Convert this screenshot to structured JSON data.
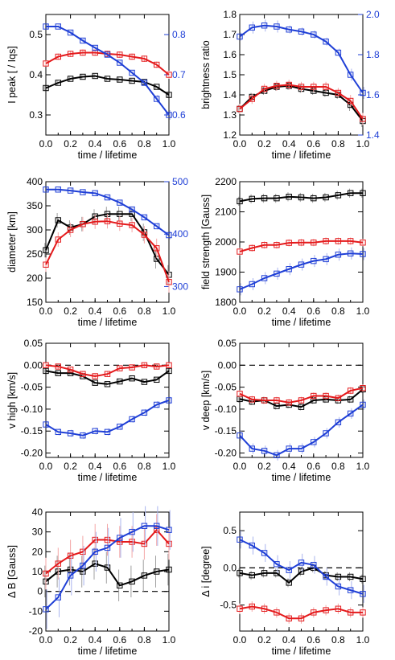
{
  "colors": {
    "black": "#000000",
    "red": "#e41a1c",
    "blue": "#1f3fd6",
    "red_err": "#f4a6a6",
    "blue_err": "#a9b4ee",
    "black_err": "#a0a0a0"
  },
  "chart_data": [
    {
      "type": "line",
      "title": "",
      "xlabel": "time / lifetime",
      "ylabel": "I peak [ / Iqs]",
      "y2label": "",
      "xlim": [
        0,
        1
      ],
      "ylim": [
        0.25,
        0.55
      ],
      "y2lim": [
        0.55,
        0.85
      ],
      "xticks": [
        "0.0",
        "0.2",
        "0.4",
        "0.6",
        "0.8",
        "1.0"
      ],
      "yticks": [
        "0.3",
        "0.4",
        "0.5"
      ],
      "y2ticks": [
        "0.6",
        "0.7",
        "0.8"
      ],
      "x": [
        0,
        0.1,
        0.2,
        0.3,
        0.4,
        0.5,
        0.6,
        0.7,
        0.8,
        0.9,
        1.0
      ],
      "series": [
        {
          "color": "black",
          "axis": "left",
          "values": [
            0.367,
            0.38,
            0.39,
            0.395,
            0.397,
            0.39,
            0.388,
            0.385,
            0.382,
            0.37,
            0.35
          ],
          "err": [
            0.005,
            0.005,
            0.005,
            0.005,
            0.005,
            0.005,
            0.005,
            0.005,
            0.005,
            0.005,
            0.008
          ]
        },
        {
          "color": "red",
          "axis": "left",
          "values": [
            0.428,
            0.445,
            0.452,
            0.455,
            0.455,
            0.452,
            0.45,
            0.445,
            0.44,
            0.425,
            0.4
          ],
          "err": [
            0.008,
            0.008,
            0.008,
            0.008,
            0.008,
            0.008,
            0.008,
            0.008,
            0.008,
            0.008,
            0.01
          ]
        },
        {
          "color": "blue",
          "axis": "right",
          "values": [
            0.82,
            0.82,
            0.805,
            0.785,
            0.767,
            0.75,
            0.73,
            0.705,
            0.68,
            0.64,
            0.6
          ],
          "err": [
            0.007,
            0.007,
            0.007,
            0.007,
            0.007,
            0.007,
            0.007,
            0.007,
            0.008,
            0.01,
            0.012
          ]
        }
      ]
    },
    {
      "type": "line",
      "title": "",
      "xlabel": "time / lifetime",
      "ylabel": "brightness ratio",
      "y2label": "",
      "xlim": [
        0,
        1
      ],
      "ylim": [
        1.2,
        1.8
      ],
      "y2lim": [
        1.4,
        2.0
      ],
      "xticks": [
        "0.0",
        "0.2",
        "0.4",
        "0.6",
        "0.8",
        "1.0"
      ],
      "yticks": [
        "1.2",
        "1.3",
        "1.4",
        "1.5",
        "1.6",
        "1.7",
        "1.8"
      ],
      "y2ticks": [
        "1.4",
        "1.6",
        "1.8",
        "2.0"
      ],
      "x": [
        0,
        0.1,
        0.2,
        0.3,
        0.4,
        0.5,
        0.6,
        0.7,
        0.8,
        0.9,
        1.0
      ],
      "series": [
        {
          "color": "black",
          "axis": "left",
          "values": [
            1.33,
            1.39,
            1.42,
            1.44,
            1.445,
            1.43,
            1.42,
            1.41,
            1.4,
            1.35,
            1.27
          ],
          "err": [
            0.02,
            0.02,
            0.02,
            0.02,
            0.02,
            0.02,
            0.02,
            0.02,
            0.02,
            0.03,
            0.03
          ]
        },
        {
          "color": "red",
          "axis": "left",
          "values": [
            1.33,
            1.38,
            1.43,
            1.445,
            1.45,
            1.44,
            1.44,
            1.44,
            1.41,
            1.37,
            1.28
          ],
          "err": [
            0.025,
            0.025,
            0.025,
            0.025,
            0.025,
            0.025,
            0.025,
            0.025,
            0.025,
            0.03,
            0.03
          ]
        },
        {
          "color": "blue",
          "axis": "right",
          "values": [
            1.89,
            1.935,
            1.945,
            1.94,
            1.925,
            1.915,
            1.9,
            1.865,
            1.81,
            1.7,
            1.61
          ],
          "err": [
            0.02,
            0.03,
            0.03,
            0.03,
            0.02,
            0.02,
            0.02,
            0.02,
            0.02,
            0.03,
            0.03
          ]
        }
      ]
    },
    {
      "type": "line",
      "title": "",
      "xlabel": "time / lifetime",
      "ylabel": "diameter [km]",
      "y2label": "",
      "xlim": [
        0,
        1
      ],
      "ylim": [
        150,
        400
      ],
      "y2lim": [
        270,
        500
      ],
      "xticks": [
        "0.0",
        "0.2",
        "0.4",
        "0.6",
        "0.8",
        "1.0"
      ],
      "yticks": [
        "150",
        "200",
        "250",
        "300",
        "350",
        "400"
      ],
      "y2ticks": [
        "300",
        "400",
        "500"
      ],
      "x": [
        0,
        0.1,
        0.2,
        0.3,
        0.4,
        0.5,
        0.6,
        0.7,
        0.8,
        0.9,
        1.0
      ],
      "series": [
        {
          "color": "black",
          "axis": "left",
          "values": [
            258,
            320,
            305,
            312,
            328,
            333,
            333,
            333,
            295,
            240,
            207
          ],
          "err": [
            15,
            15,
            15,
            15,
            15,
            15,
            15,
            15,
            18,
            20,
            20
          ]
        },
        {
          "color": "red",
          "axis": "left",
          "values": [
            228,
            280,
            300,
            312,
            317,
            318,
            313,
            310,
            290,
            262,
            192
          ],
          "err": [
            15,
            15,
            15,
            15,
            15,
            15,
            15,
            15,
            18,
            20,
            22
          ]
        },
        {
          "color": "blue",
          "axis": "right",
          "values": [
            485,
            485,
            483,
            480,
            478,
            470,
            460,
            447,
            432,
            415,
            398
          ],
          "err": [
            5,
            5,
            5,
            5,
            5,
            5,
            5,
            5,
            6,
            6,
            8
          ]
        }
      ]
    },
    {
      "type": "line",
      "title": "",
      "xlabel": "time / lifetime",
      "ylabel": "field strength [Gauss]",
      "xlim": [
        0,
        1
      ],
      "ylim": [
        1800,
        2200
      ],
      "xticks": [
        "0.0",
        "0.2",
        "0.4",
        "0.6",
        "0.8",
        "1.0"
      ],
      "yticks": [
        "1800",
        "1900",
        "2000",
        "2100",
        "2200"
      ],
      "x": [
        0,
        0.1,
        0.2,
        0.3,
        0.4,
        0.5,
        0.6,
        0.7,
        0.8,
        0.9,
        1.0
      ],
      "series": [
        {
          "color": "black",
          "axis": "left",
          "values": [
            2135,
            2143,
            2145,
            2145,
            2150,
            2148,
            2145,
            2148,
            2155,
            2162,
            2162
          ],
          "err": [
            15,
            15,
            15,
            15,
            15,
            15,
            15,
            15,
            15,
            15,
            15
          ]
        },
        {
          "color": "red",
          "axis": "left",
          "values": [
            1968,
            1980,
            1990,
            1990,
            1997,
            1998,
            1998,
            2003,
            2003,
            2003,
            1998
          ],
          "err": [
            12,
            12,
            12,
            12,
            12,
            12,
            12,
            12,
            12,
            12,
            12
          ]
        },
        {
          "color": "blue",
          "axis": "left",
          "values": [
            1843,
            1860,
            1880,
            1895,
            1910,
            1925,
            1937,
            1943,
            1958,
            1962,
            1960
          ],
          "err": [
            20,
            20,
            20,
            20,
            20,
            20,
            20,
            20,
            20,
            20,
            20
          ]
        }
      ]
    },
    {
      "type": "line",
      "title": "",
      "xlabel": "time / lifetime",
      "ylabel": "v high [km/s]",
      "xlim": [
        0,
        1
      ],
      "ylim": [
        -0.21,
        0.05
      ],
      "hline": 0,
      "xticks": [
        "0.0",
        "0.2",
        "0.4",
        "0.6",
        "0.8",
        "1.0"
      ],
      "yticks": [
        "-0.20",
        "-0.15",
        "-0.10",
        "-0.05",
        "0.00",
        "0.05"
      ],
      "x": [
        0,
        0.1,
        0.2,
        0.3,
        0.4,
        0.5,
        0.6,
        0.7,
        0.8,
        0.9,
        1.0
      ],
      "series": [
        {
          "color": "black",
          "axis": "left",
          "values": [
            -0.013,
            -0.018,
            -0.018,
            -0.025,
            -0.04,
            -0.043,
            -0.037,
            -0.03,
            -0.038,
            -0.033,
            -0.013
          ],
          "err": [
            0.004,
            0.004,
            0.004,
            0.004,
            0.004,
            0.004,
            0.004,
            0.004,
            0.004,
            0.004,
            0.004
          ]
        },
        {
          "color": "red",
          "axis": "left",
          "values": [
            0.0,
            -0.003,
            -0.01,
            -0.02,
            -0.025,
            -0.02,
            -0.007,
            -0.005,
            0.0,
            -0.003,
            0.0
          ],
          "err": [
            0.006,
            0.006,
            0.006,
            0.006,
            0.006,
            0.006,
            0.006,
            0.006,
            0.006,
            0.006,
            0.006
          ]
        },
        {
          "color": "blue",
          "axis": "left",
          "values": [
            -0.135,
            -0.152,
            -0.155,
            -0.16,
            -0.15,
            -0.152,
            -0.14,
            -0.123,
            -0.108,
            -0.09,
            -0.08
          ],
          "err": [
            0.008,
            0.008,
            0.008,
            0.008,
            0.008,
            0.008,
            0.008,
            0.008,
            0.008,
            0.008,
            0.008
          ]
        }
      ]
    },
    {
      "type": "line",
      "title": "",
      "xlabel": "time / lifetime",
      "ylabel": "v deep [km/s]",
      "xlim": [
        0,
        1
      ],
      "ylim": [
        -0.21,
        0.05
      ],
      "hline": 0,
      "xticks": [
        "0.0",
        "0.2",
        "0.4",
        "0.6",
        "0.8",
        "1.0"
      ],
      "yticks": [
        "-0.20",
        "-0.15",
        "-0.10",
        "-0.05",
        "0.00",
        "0.05"
      ],
      "x": [
        0,
        0.1,
        0.2,
        0.3,
        0.4,
        0.5,
        0.6,
        0.7,
        0.8,
        0.9,
        1.0
      ],
      "series": [
        {
          "color": "black",
          "axis": "left",
          "values": [
            -0.077,
            -0.083,
            -0.08,
            -0.093,
            -0.09,
            -0.095,
            -0.08,
            -0.078,
            -0.08,
            -0.078,
            -0.055
          ],
          "err": [
            0.008,
            0.008,
            0.008,
            0.008,
            0.008,
            0.008,
            0.008,
            0.008,
            0.008,
            0.008,
            0.008
          ]
        },
        {
          "color": "red",
          "axis": "left",
          "values": [
            -0.065,
            -0.078,
            -0.08,
            -0.08,
            -0.085,
            -0.08,
            -0.07,
            -0.07,
            -0.075,
            -0.058,
            -0.052
          ],
          "err": [
            0.008,
            0.008,
            0.008,
            0.008,
            0.008,
            0.008,
            0.008,
            0.008,
            0.008,
            0.008,
            0.008
          ]
        },
        {
          "color": "blue",
          "axis": "left",
          "values": [
            -0.16,
            -0.19,
            -0.195,
            -0.205,
            -0.19,
            -0.19,
            -0.175,
            -0.155,
            -0.13,
            -0.11,
            -0.09
          ],
          "err": [
            0.012,
            0.012,
            0.012,
            0.012,
            0.012,
            0.012,
            0.012,
            0.012,
            0.012,
            0.012,
            0.012
          ]
        }
      ]
    },
    {
      "type": "line",
      "title": "",
      "xlabel": "time / lifetime",
      "ylabel": "Δ B [Gauss]",
      "xlim": [
        0,
        1
      ],
      "ylim": [
        -20,
        40
      ],
      "hline": 0,
      "xticks": [
        "0.0",
        "0.2",
        "0.4",
        "0.6",
        "0.8",
        "1.0"
      ],
      "yticks": [
        "-20",
        "-10",
        "0",
        "10",
        "20",
        "30",
        "40"
      ],
      "x": [
        0,
        0.1,
        0.2,
        0.3,
        0.4,
        0.5,
        0.6,
        0.7,
        0.8,
        0.9,
        1.0
      ],
      "series": [
        {
          "color": "black",
          "axis": "left",
          "values": [
            5,
            10,
            11,
            10,
            14,
            12,
            3,
            5,
            8,
            10,
            11
          ],
          "err": [
            8,
            8,
            8,
            8,
            8,
            8,
            8,
            8,
            8,
            8,
            8
          ]
        },
        {
          "color": "red",
          "axis": "left",
          "values": [
            9,
            14,
            18,
            20,
            26,
            26,
            25,
            25,
            24,
            31,
            24
          ],
          "err": [
            8,
            8,
            8,
            8,
            8,
            8,
            8,
            8,
            8,
            8,
            8
          ]
        },
        {
          "color": "blue",
          "axis": "left",
          "values": [
            -9,
            -3,
            8,
            13,
            20,
            22,
            27,
            30,
            33,
            33,
            31
          ],
          "err": [
            10,
            10,
            10,
            10,
            10,
            10,
            10,
            10,
            10,
            10,
            10
          ]
        }
      ]
    },
    {
      "type": "line",
      "title": "",
      "xlabel": "time / lifetime",
      "ylabel": "Δ i [degree]",
      "xlim": [
        0,
        1
      ],
      "ylim": [
        -0.85,
        0.75
      ],
      "hline": 0,
      "xticks": [
        "0.0",
        "0.2",
        "0.4",
        "0.6",
        "0.8",
        "1.0"
      ],
      "yticks": [
        "-0.5",
        "0.0",
        "0.5"
      ],
      "x": [
        0,
        0.1,
        0.2,
        0.3,
        0.4,
        0.5,
        0.6,
        0.7,
        0.8,
        0.9,
        1.0
      ],
      "series": [
        {
          "color": "black",
          "axis": "left",
          "values": [
            -0.07,
            -0.1,
            -0.07,
            -0.07,
            -0.2,
            -0.05,
            0.0,
            -0.1,
            -0.12,
            -0.12,
            -0.15
          ],
          "err": [
            0.06,
            0.06,
            0.06,
            0.06,
            0.06,
            0.06,
            0.06,
            0.06,
            0.06,
            0.06,
            0.06
          ]
        },
        {
          "color": "red",
          "axis": "left",
          "values": [
            -0.55,
            -0.52,
            -0.55,
            -0.6,
            -0.68,
            -0.68,
            -0.6,
            -0.57,
            -0.55,
            -0.6,
            -0.6
          ],
          "err": [
            0.07,
            0.07,
            0.07,
            0.07,
            0.07,
            0.07,
            0.07,
            0.07,
            0.07,
            0.07,
            0.07
          ]
        },
        {
          "color": "blue",
          "axis": "left",
          "values": [
            0.38,
            0.3,
            0.2,
            0.05,
            -0.03,
            0.07,
            0.04,
            -0.12,
            -0.25,
            -0.3,
            -0.35
          ],
          "err": [
            0.12,
            0.12,
            0.12,
            0.12,
            0.12,
            0.12,
            0.12,
            0.12,
            0.12,
            0.12,
            0.12
          ]
        }
      ]
    }
  ]
}
